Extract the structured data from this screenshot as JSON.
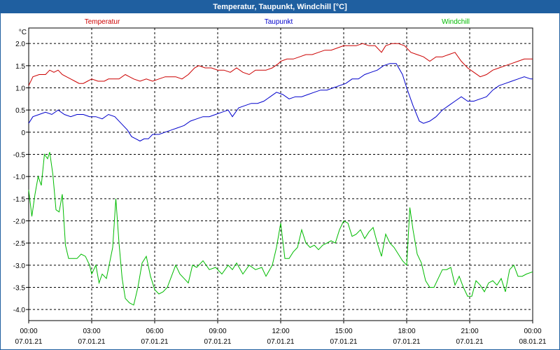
{
  "window": {
    "title": "Temperatur, Taupunkt, Windchill [°C]"
  },
  "chart_data": {
    "type": "line",
    "title": "Temperatur, Taupunkt, Windchill [°C]",
    "ylabel": "°C",
    "ylim": [
      -4.25,
      2.35
    ],
    "xlim": [
      0,
      24
    ],
    "y_ticks": [
      "2.0",
      "1.5",
      "1.0",
      "0.5",
      "0",
      "-0.5",
      "-1.0",
      "-1.5",
      "-2.0",
      "-2.5",
      "-3.0",
      "-3.5",
      "-4.0"
    ],
    "x_ticks": [
      {
        "time": "00:00",
        "date": "07.01.21"
      },
      {
        "time": "03:00",
        "date": "07.01.21"
      },
      {
        "time": "06:00",
        "date": "07.01.21"
      },
      {
        "time": "09:00",
        "date": "07.01.21"
      },
      {
        "time": "12:00",
        "date": "07.01.21"
      },
      {
        "time": "15:00",
        "date": "07.01.21"
      },
      {
        "time": "18:00",
        "date": "07.01.21"
      },
      {
        "time": "21:00",
        "date": "07.01.21"
      },
      {
        "time": "00:00",
        "date": "08.01.21"
      }
    ],
    "grid": true,
    "series": [
      {
        "name": "Temperatur",
        "color": "#cc0000",
        "points": [
          [
            0,
            1.05
          ],
          [
            0.2,
            1.25
          ],
          [
            0.5,
            1.3
          ],
          [
            0.8,
            1.3
          ],
          [
            1.0,
            1.4
          ],
          [
            1.2,
            1.35
          ],
          [
            1.4,
            1.4
          ],
          [
            1.6,
            1.3
          ],
          [
            1.8,
            1.25
          ],
          [
            2.0,
            1.2
          ],
          [
            2.2,
            1.15
          ],
          [
            2.4,
            1.1
          ],
          [
            2.6,
            1.1
          ],
          [
            2.8,
            1.15
          ],
          [
            3.0,
            1.2
          ],
          [
            3.3,
            1.15
          ],
          [
            3.6,
            1.15
          ],
          [
            3.8,
            1.2
          ],
          [
            4.0,
            1.2
          ],
          [
            4.3,
            1.2
          ],
          [
            4.6,
            1.3
          ],
          [
            4.8,
            1.25
          ],
          [
            5.0,
            1.2
          ],
          [
            5.3,
            1.15
          ],
          [
            5.6,
            1.2
          ],
          [
            5.9,
            1.15
          ],
          [
            6.2,
            1.2
          ],
          [
            6.5,
            1.25
          ],
          [
            6.8,
            1.25
          ],
          [
            7.0,
            1.25
          ],
          [
            7.3,
            1.2
          ],
          [
            7.6,
            1.3
          ],
          [
            7.9,
            1.45
          ],
          [
            8.1,
            1.5
          ],
          [
            8.4,
            1.45
          ],
          [
            8.7,
            1.45
          ],
          [
            9.0,
            1.4
          ],
          [
            9.3,
            1.4
          ],
          [
            9.6,
            1.35
          ],
          [
            9.9,
            1.45
          ],
          [
            10.2,
            1.35
          ],
          [
            10.5,
            1.3
          ],
          [
            10.8,
            1.4
          ],
          [
            11.0,
            1.4
          ],
          [
            11.3,
            1.4
          ],
          [
            11.6,
            1.45
          ],
          [
            11.9,
            1.55
          ],
          [
            12.0,
            1.6
          ],
          [
            12.3,
            1.65
          ],
          [
            12.6,
            1.65
          ],
          [
            12.9,
            1.7
          ],
          [
            13.2,
            1.75
          ],
          [
            13.5,
            1.75
          ],
          [
            13.8,
            1.8
          ],
          [
            14.1,
            1.85
          ],
          [
            14.4,
            1.85
          ],
          [
            14.7,
            1.9
          ],
          [
            15.0,
            1.95
          ],
          [
            15.3,
            1.95
          ],
          [
            15.6,
            1.95
          ],
          [
            15.9,
            2.0
          ],
          [
            16.2,
            1.95
          ],
          [
            16.5,
            1.95
          ],
          [
            16.8,
            1.8
          ],
          [
            17.0,
            1.95
          ],
          [
            17.3,
            2.0
          ],
          [
            17.6,
            2.0
          ],
          [
            17.9,
            1.95
          ],
          [
            18.2,
            1.8
          ],
          [
            18.5,
            1.75
          ],
          [
            18.8,
            1.7
          ],
          [
            19.1,
            1.6
          ],
          [
            19.4,
            1.7
          ],
          [
            19.7,
            1.7
          ],
          [
            20.0,
            1.75
          ],
          [
            20.3,
            1.8
          ],
          [
            20.6,
            1.6
          ],
          [
            20.9,
            1.45
          ],
          [
            21.2,
            1.35
          ],
          [
            21.5,
            1.25
          ],
          [
            21.8,
            1.3
          ],
          [
            22.1,
            1.4
          ],
          [
            22.4,
            1.45
          ],
          [
            22.7,
            1.5
          ],
          [
            23.0,
            1.55
          ],
          [
            23.3,
            1.6
          ],
          [
            23.6,
            1.65
          ],
          [
            24.0,
            1.65
          ]
        ]
      },
      {
        "name": "Taupunkt",
        "color": "#0000cc",
        "points": [
          [
            0,
            0.2
          ],
          [
            0.2,
            0.35
          ],
          [
            0.5,
            0.4
          ],
          [
            0.8,
            0.45
          ],
          [
            1.1,
            0.4
          ],
          [
            1.4,
            0.5
          ],
          [
            1.7,
            0.4
          ],
          [
            2.0,
            0.35
          ],
          [
            2.3,
            0.4
          ],
          [
            2.6,
            0.4
          ],
          [
            2.9,
            0.35
          ],
          [
            3.2,
            0.35
          ],
          [
            3.5,
            0.3
          ],
          [
            3.8,
            0.4
          ],
          [
            4.1,
            0.35
          ],
          [
            4.4,
            0.2
          ],
          [
            4.7,
            0.05
          ],
          [
            4.9,
            -0.1
          ],
          [
            5.1,
            -0.15
          ],
          [
            5.3,
            -0.2
          ],
          [
            5.5,
            -0.15
          ],
          [
            5.7,
            -0.15
          ],
          [
            5.9,
            -0.05
          ],
          [
            6.2,
            -0.05
          ],
          [
            6.5,
            0.0
          ],
          [
            6.8,
            0.05
          ],
          [
            7.1,
            0.1
          ],
          [
            7.4,
            0.15
          ],
          [
            7.7,
            0.25
          ],
          [
            8.0,
            0.3
          ],
          [
            8.3,
            0.35
          ],
          [
            8.6,
            0.35
          ],
          [
            8.9,
            0.4
          ],
          [
            9.2,
            0.45
          ],
          [
            9.5,
            0.5
          ],
          [
            9.7,
            0.35
          ],
          [
            10.0,
            0.55
          ],
          [
            10.3,
            0.6
          ],
          [
            10.6,
            0.65
          ],
          [
            10.9,
            0.65
          ],
          [
            11.2,
            0.7
          ],
          [
            11.5,
            0.8
          ],
          [
            11.8,
            0.9
          ],
          [
            12.1,
            0.85
          ],
          [
            12.4,
            0.75
          ],
          [
            12.7,
            0.8
          ],
          [
            13.0,
            0.8
          ],
          [
            13.3,
            0.85
          ],
          [
            13.6,
            0.9
          ],
          [
            13.9,
            0.95
          ],
          [
            14.2,
            0.95
          ],
          [
            14.5,
            1.0
          ],
          [
            14.8,
            1.05
          ],
          [
            15.1,
            1.1
          ],
          [
            15.4,
            1.2
          ],
          [
            15.7,
            1.2
          ],
          [
            16.0,
            1.3
          ],
          [
            16.3,
            1.35
          ],
          [
            16.6,
            1.4
          ],
          [
            16.9,
            1.5
          ],
          [
            17.2,
            1.55
          ],
          [
            17.5,
            1.55
          ],
          [
            17.8,
            1.3
          ],
          [
            18.0,
            1.0
          ],
          [
            18.3,
            0.6
          ],
          [
            18.6,
            0.25
          ],
          [
            18.8,
            0.2
          ],
          [
            19.1,
            0.25
          ],
          [
            19.4,
            0.35
          ],
          [
            19.7,
            0.5
          ],
          [
            20.0,
            0.6
          ],
          [
            20.3,
            0.7
          ],
          [
            20.6,
            0.8
          ],
          [
            20.9,
            0.7
          ],
          [
            21.2,
            0.7
          ],
          [
            21.5,
            0.75
          ],
          [
            21.8,
            0.8
          ],
          [
            22.1,
            0.95
          ],
          [
            22.4,
            1.05
          ],
          [
            22.7,
            1.1
          ],
          [
            23.0,
            1.15
          ],
          [
            23.3,
            1.2
          ],
          [
            23.6,
            1.25
          ],
          [
            23.9,
            1.2
          ],
          [
            24.0,
            1.2
          ]
        ]
      },
      {
        "name": "Windchill",
        "color": "#00bb00",
        "points": [
          [
            0,
            -1.3
          ],
          [
            0.15,
            -1.9
          ],
          [
            0.3,
            -1.4
          ],
          [
            0.45,
            -1.0
          ],
          [
            0.6,
            -1.2
          ],
          [
            0.75,
            -0.5
          ],
          [
            0.9,
            -0.6
          ],
          [
            1.0,
            -0.45
          ],
          [
            1.15,
            -0.95
          ],
          [
            1.3,
            -1.75
          ],
          [
            1.45,
            -1.8
          ],
          [
            1.6,
            -1.4
          ],
          [
            1.75,
            -2.55
          ],
          [
            1.9,
            -2.85
          ],
          [
            2.1,
            -2.85
          ],
          [
            2.3,
            -2.85
          ],
          [
            2.5,
            -2.75
          ],
          [
            2.7,
            -2.8
          ],
          [
            2.9,
            -3.0
          ],
          [
            3.0,
            -3.2
          ],
          [
            3.2,
            -3.0
          ],
          [
            3.35,
            -3.4
          ],
          [
            3.5,
            -3.2
          ],
          [
            3.7,
            -3.3
          ],
          [
            3.85,
            -2.95
          ],
          [
            4.0,
            -2.6
          ],
          [
            4.15,
            -1.5
          ],
          [
            4.3,
            -2.5
          ],
          [
            4.45,
            -3.3
          ],
          [
            4.6,
            -3.75
          ],
          [
            4.8,
            -3.85
          ],
          [
            5.0,
            -3.9
          ],
          [
            5.2,
            -3.5
          ],
          [
            5.4,
            -2.95
          ],
          [
            5.6,
            -2.8
          ],
          [
            5.8,
            -3.25
          ],
          [
            6.0,
            -3.55
          ],
          [
            6.2,
            -3.65
          ],
          [
            6.4,
            -3.6
          ],
          [
            6.6,
            -3.5
          ],
          [
            6.8,
            -3.25
          ],
          [
            7.0,
            -3.0
          ],
          [
            7.2,
            -3.2
          ],
          [
            7.4,
            -3.3
          ],
          [
            7.6,
            -3.4
          ],
          [
            7.8,
            -3.0
          ],
          [
            8.0,
            -3.05
          ],
          [
            8.3,
            -2.9
          ],
          [
            8.6,
            -3.1
          ],
          [
            8.9,
            -3.05
          ],
          [
            9.2,
            -3.2
          ],
          [
            9.5,
            -3.0
          ],
          [
            9.7,
            -3.1
          ],
          [
            9.9,
            -2.95
          ],
          [
            10.2,
            -3.2
          ],
          [
            10.5,
            -3.0
          ],
          [
            10.8,
            -3.1
          ],
          [
            11.1,
            -3.05
          ],
          [
            11.3,
            -3.25
          ],
          [
            11.6,
            -3.0
          ],
          [
            11.8,
            -2.6
          ],
          [
            12.0,
            -2.05
          ],
          [
            12.2,
            -2.85
          ],
          [
            12.4,
            -2.85
          ],
          [
            12.6,
            -2.7
          ],
          [
            12.8,
            -2.6
          ],
          [
            13.0,
            -2.2
          ],
          [
            13.2,
            -2.5
          ],
          [
            13.4,
            -2.6
          ],
          [
            13.6,
            -2.55
          ],
          [
            13.8,
            -2.65
          ],
          [
            14.0,
            -2.55
          ],
          [
            14.2,
            -2.5
          ],
          [
            14.4,
            -2.45
          ],
          [
            14.6,
            -2.5
          ],
          [
            14.8,
            -2.2
          ],
          [
            15.0,
            -2.0
          ],
          [
            15.2,
            -2.05
          ],
          [
            15.4,
            -2.35
          ],
          [
            15.6,
            -2.3
          ],
          [
            15.8,
            -2.2
          ],
          [
            16.0,
            -2.4
          ],
          [
            16.2,
            -2.25
          ],
          [
            16.4,
            -2.15
          ],
          [
            16.6,
            -2.5
          ],
          [
            16.8,
            -2.8
          ],
          [
            17.0,
            -2.3
          ],
          [
            17.2,
            -2.5
          ],
          [
            17.4,
            -2.6
          ],
          [
            17.6,
            -2.75
          ],
          [
            17.8,
            -2.9
          ],
          [
            18.0,
            -3.0
          ],
          [
            18.15,
            -1.7
          ],
          [
            18.3,
            -2.2
          ],
          [
            18.5,
            -2.75
          ],
          [
            18.7,
            -2.95
          ],
          [
            18.9,
            -3.35
          ],
          [
            19.1,
            -3.5
          ],
          [
            19.3,
            -3.5
          ],
          [
            19.5,
            -3.3
          ],
          [
            19.7,
            -3.1
          ],
          [
            19.9,
            -3.1
          ],
          [
            20.1,
            -3.05
          ],
          [
            20.3,
            -3.45
          ],
          [
            20.5,
            -3.25
          ],
          [
            20.7,
            -3.5
          ],
          [
            20.9,
            -3.7
          ],
          [
            21.1,
            -3.7
          ],
          [
            21.3,
            -3.35
          ],
          [
            21.5,
            -3.45
          ],
          [
            21.7,
            -3.6
          ],
          [
            21.9,
            -3.4
          ],
          [
            22.1,
            -3.35
          ],
          [
            22.3,
            -3.45
          ],
          [
            22.5,
            -3.3
          ],
          [
            22.7,
            -3.6
          ],
          [
            22.9,
            -3.1
          ],
          [
            23.1,
            -3.0
          ],
          [
            23.3,
            -3.25
          ],
          [
            23.5,
            -3.25
          ],
          [
            23.7,
            -3.2
          ],
          [
            24.0,
            -3.15
          ]
        ]
      }
    ]
  }
}
